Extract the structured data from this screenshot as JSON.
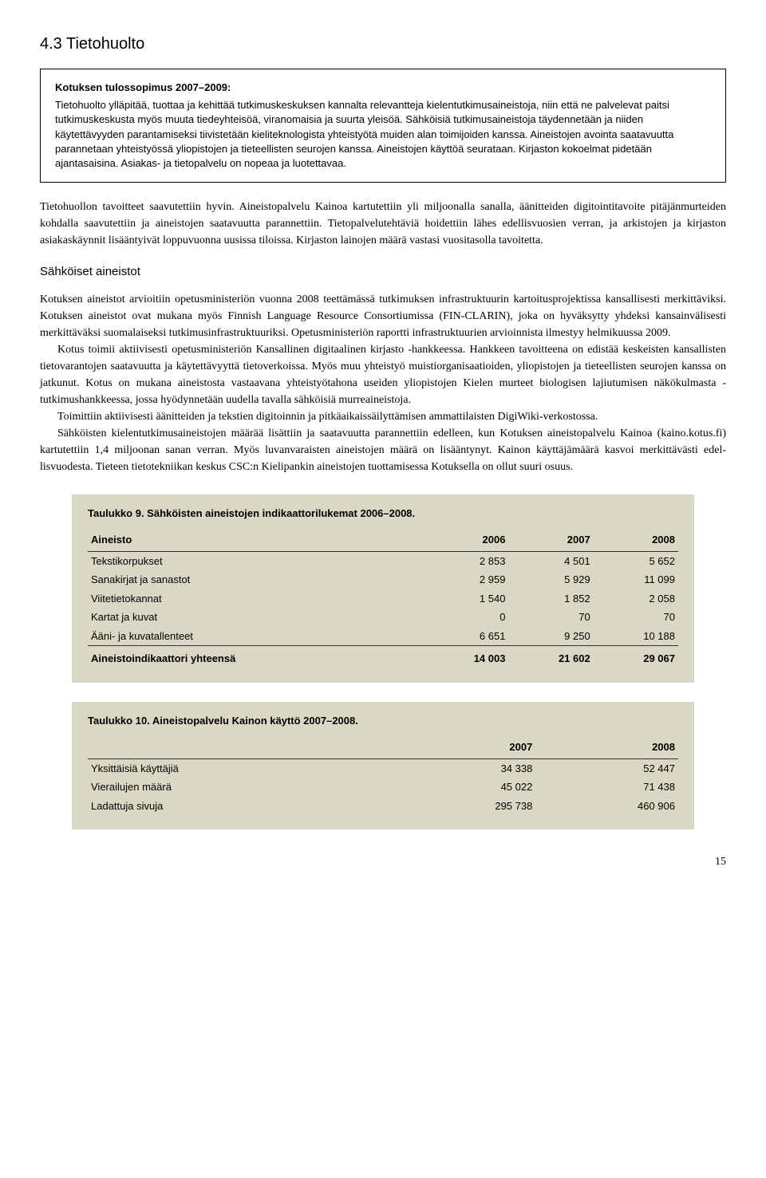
{
  "heading": "4.3 Tietohuolto",
  "box": {
    "title": "Kotuksen tulossopimus 2007–2009:",
    "text": "Tietohuolto ylläpitää, tuottaa ja kehittää tutkimuskeskuksen kannalta relevantteja kielentutkimus­aineistoja, niin että ne palvelevat paitsi tutkimuskeskusta myös muuta tiedeyhteisöä, viranomaisia ja suurta yleisöä. Sähköisiä tutkimusaineistoja täydennetään ja niiden käytettävyyden parantami­seksi tiivistetään kieliteknologista yhteistyötä muiden alan toimijoiden kanssa. Aineistojen avointa saatavuutta parannetaan yhteistyössä yliopistojen ja tieteellisten seurojen kanssa. Aineistojen käyttöä seurataan. Kirjaston kokoelmat pidetään ajantasaisina. Asiakas- ja tietopalvelu on nopeaa ja luotettavaa."
  },
  "para1": "Tietohuollon tavoitteet saavutettiin hyvin. Aineistopalvelu Kainoa kartutettiin yli miljoonalla sa­nalla, äänitteiden digitointitavoite pitäjänmurteiden kohdalla saavutettiin ja aineistojen saatavuutta parannettiin. Tietopalvelutehtäviä hoidettiin lähes edellisvuosien verran, ja arkistojen ja kirjaston asiakaskäynnit lisääntyivät loppuvuonna uusissa tiloissa. Kirjaston lainojen määrä vastasi vuosita­solla tavoitetta.",
  "subheading": "Sähköiset aineistot",
  "para2": "Kotuksen aineistot arvioitiin opetusministeriön vuonna 2008 teettämässä tutkimuksen infrastruktuu­rin kartoitusprojektissa kansallisesti merkittäviksi. Kotuksen aineistot ovat mukana myös Finnish Language Resource Consortiumissa (FIN-CLARIN), joka on hyväksytty yhdeksi kansainvälisesti merkittäväksi suomalaiseksi tutkimusinfrastruktuuriksi. Opetusministeriön raportti infrastruktuurien arvioinnista ilmestyy helmikuussa 2009.",
  "para3": "Kotus toimii aktiivisesti opetusministeriön Kansallinen digitaalinen kirjasto -hankkeessa. Hankkeen tavoitteena on edistää keskeisten kansallisten tietovarantojen saatavuutta ja käytettävyyttä tietoverkoissa. Myös muu yhteistyö muistiorganisaatioiden, yliopistojen ja tieteellisten seurojen kanssa on jatkunut. Kotus on mukana aineistosta vastaavana yhteistyötahona useiden yliopistojen Kielen murteet biologisen lajiutumisen näkökulmasta -tutkimushankkeessa, jossa hyödynnetään uudella tavalla sähköisiä murreaineistoja.",
  "para4": "Toimittiin aktiivisesti äänitteiden ja tekstien digitoinnin ja pitkäaikaissäilyttämisen ammatti­laisten DigiWiki-verkostossa.",
  "para5": "Sähköisten kielentutkimusaineistojen määrää lisättiin ja saatavuutta parannettiin edelleen, kun Kotuksen aineistopalvelu Kainoa (kaino.kotus.fi) kartutettiin 1,4 miljoonan sanan verran. Myös luvanvaraisten aineistojen määrä on lisääntynyt. Kainon käyttäjämäärä kasvoi merkittävästi edel­lisvuodesta. Tieteen tietotekniikan keskus CSC:n Kielipankin aineistojen tuottamisessa Kotuksella on ollut suuri osuus.",
  "table9": {
    "title": "Taulukko 9. Sähköisten aineistojen indikaattorilukemat 2006–2008.",
    "headers": [
      "Aineisto",
      "2006",
      "2007",
      "2008"
    ],
    "rows": [
      [
        "Tekstikorpukset",
        "2 853",
        "4 501",
        "5 652"
      ],
      [
        "Sanakirjat ja sanastot",
        "2 959",
        "5 929",
        "11 099"
      ],
      [
        "Viitetietokannat",
        "1 540",
        "1 852",
        "2 058"
      ],
      [
        "Kartat ja kuvat",
        "0",
        "70",
        "70"
      ],
      [
        "Ääni- ja kuvatallenteet",
        "6 651",
        "9 250",
        "10 188"
      ]
    ],
    "sum": [
      "Aineistoindikaattori yhteensä",
      "14 003",
      "21 602",
      "29 067"
    ]
  },
  "table10": {
    "title": "Taulukko 10. Aineistopalvelu Kainon käyttö 2007–2008.",
    "headers": [
      "",
      "2007",
      "2008"
    ],
    "rows": [
      [
        "Yksittäisiä käyttäjiä",
        "34 338",
        "52 447"
      ],
      [
        "Vierailujen määrä",
        "45 022",
        "71 438"
      ],
      [
        "Ladattuja sivuja",
        "295 738",
        "460 906"
      ]
    ]
  },
  "pageNum": "15"
}
